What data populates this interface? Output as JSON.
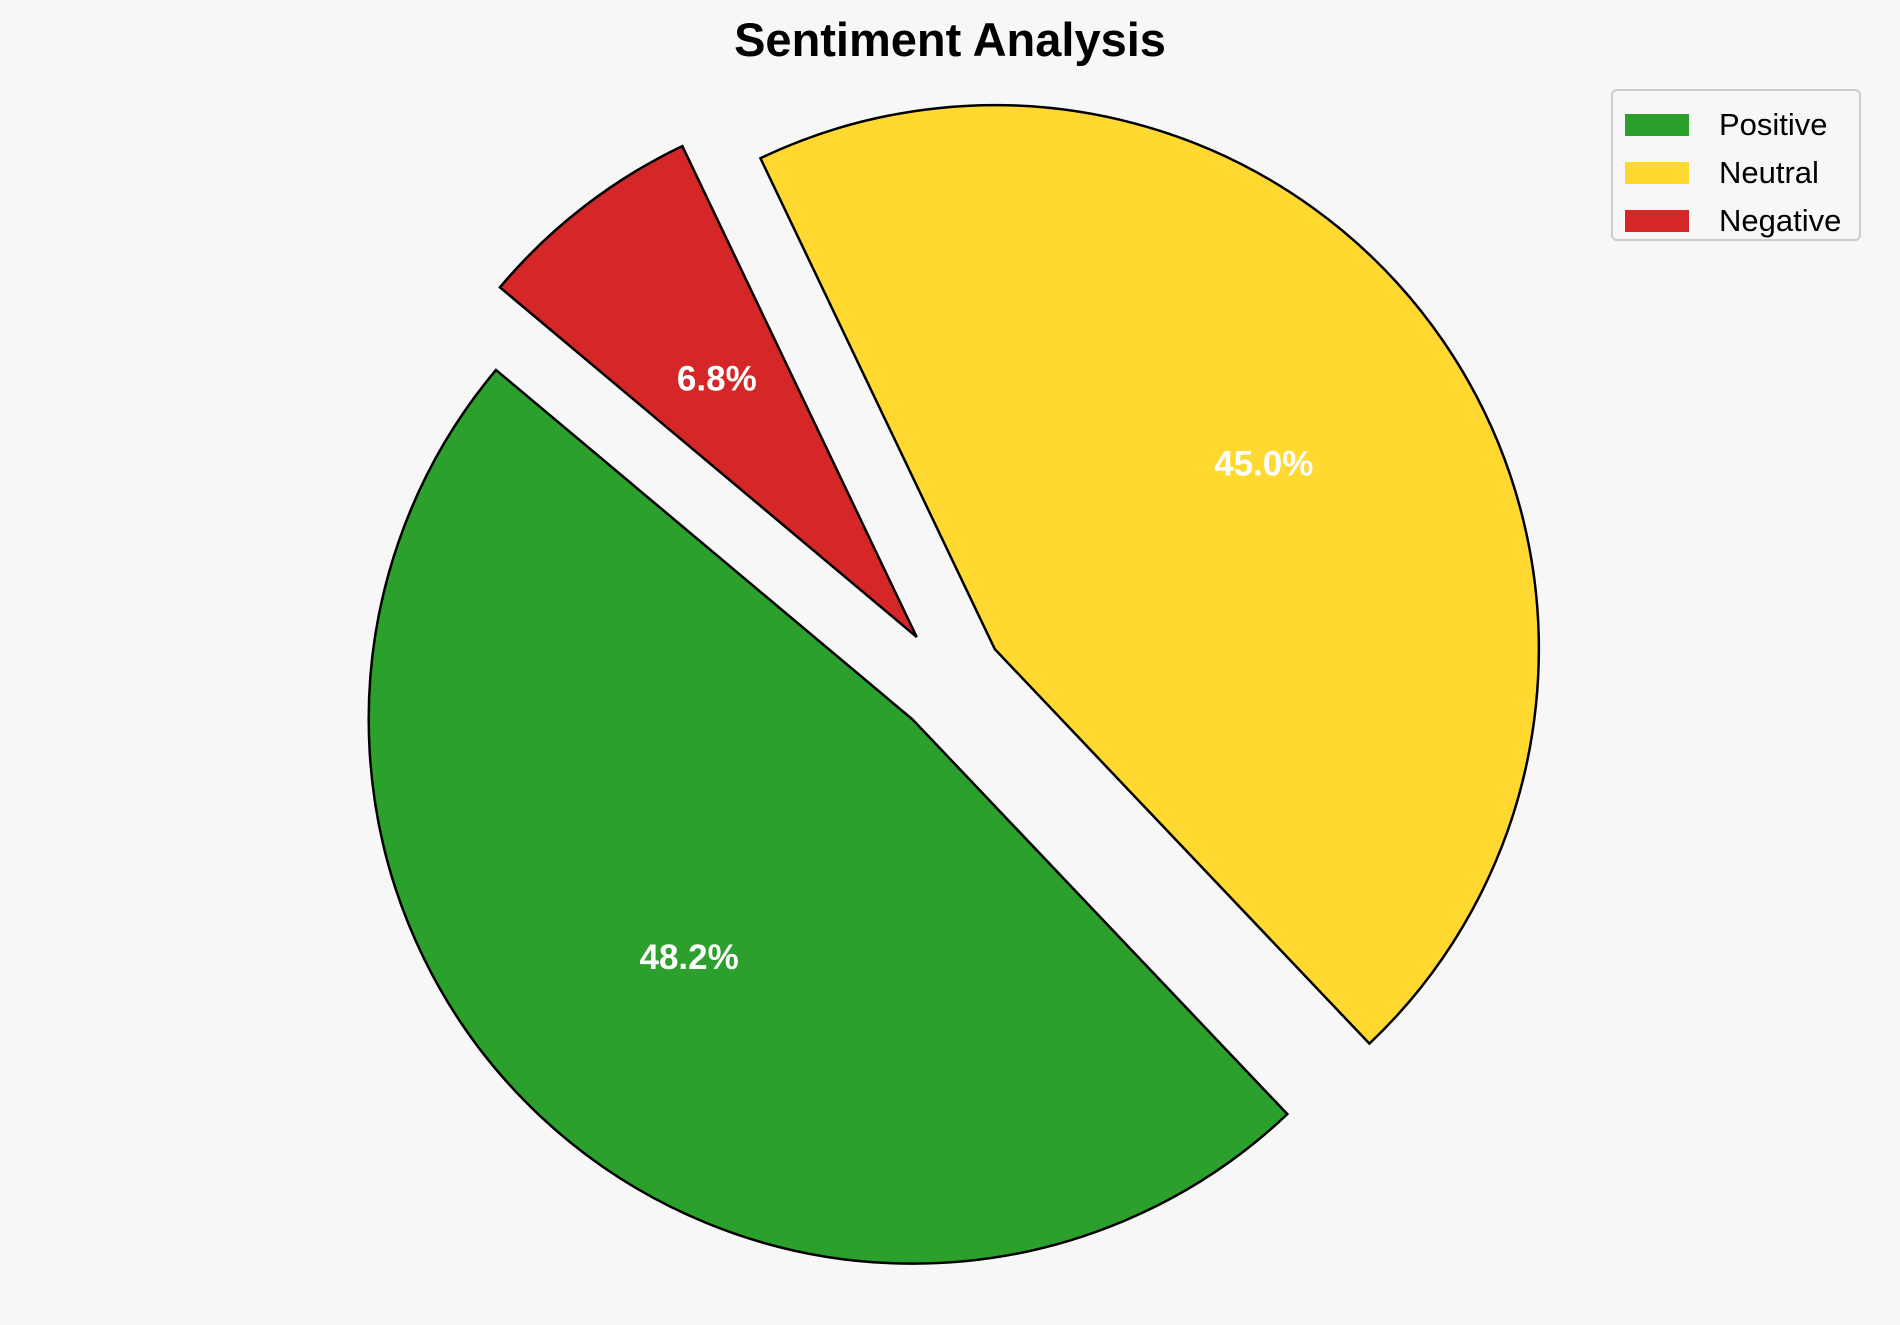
{
  "chart_data": {
    "type": "pie",
    "title": "Sentiment Analysis",
    "legend_position": "top-right",
    "slices": [
      {
        "label": "Positive",
        "value": 48.2,
        "pct_text": "48.2%",
        "color": "#2ca02c",
        "exploded": true
      },
      {
        "label": "Neutral",
        "value": 45.0,
        "pct_text": "45.0%",
        "color": "#ffd92f",
        "exploded": true
      },
      {
        "label": "Negative",
        "value": 6.8,
        "pct_text": "6.8%",
        "color": "#d62728",
        "exploded": true
      }
    ],
    "edge_color": "#000000",
    "background": "#f7f7f7"
  }
}
